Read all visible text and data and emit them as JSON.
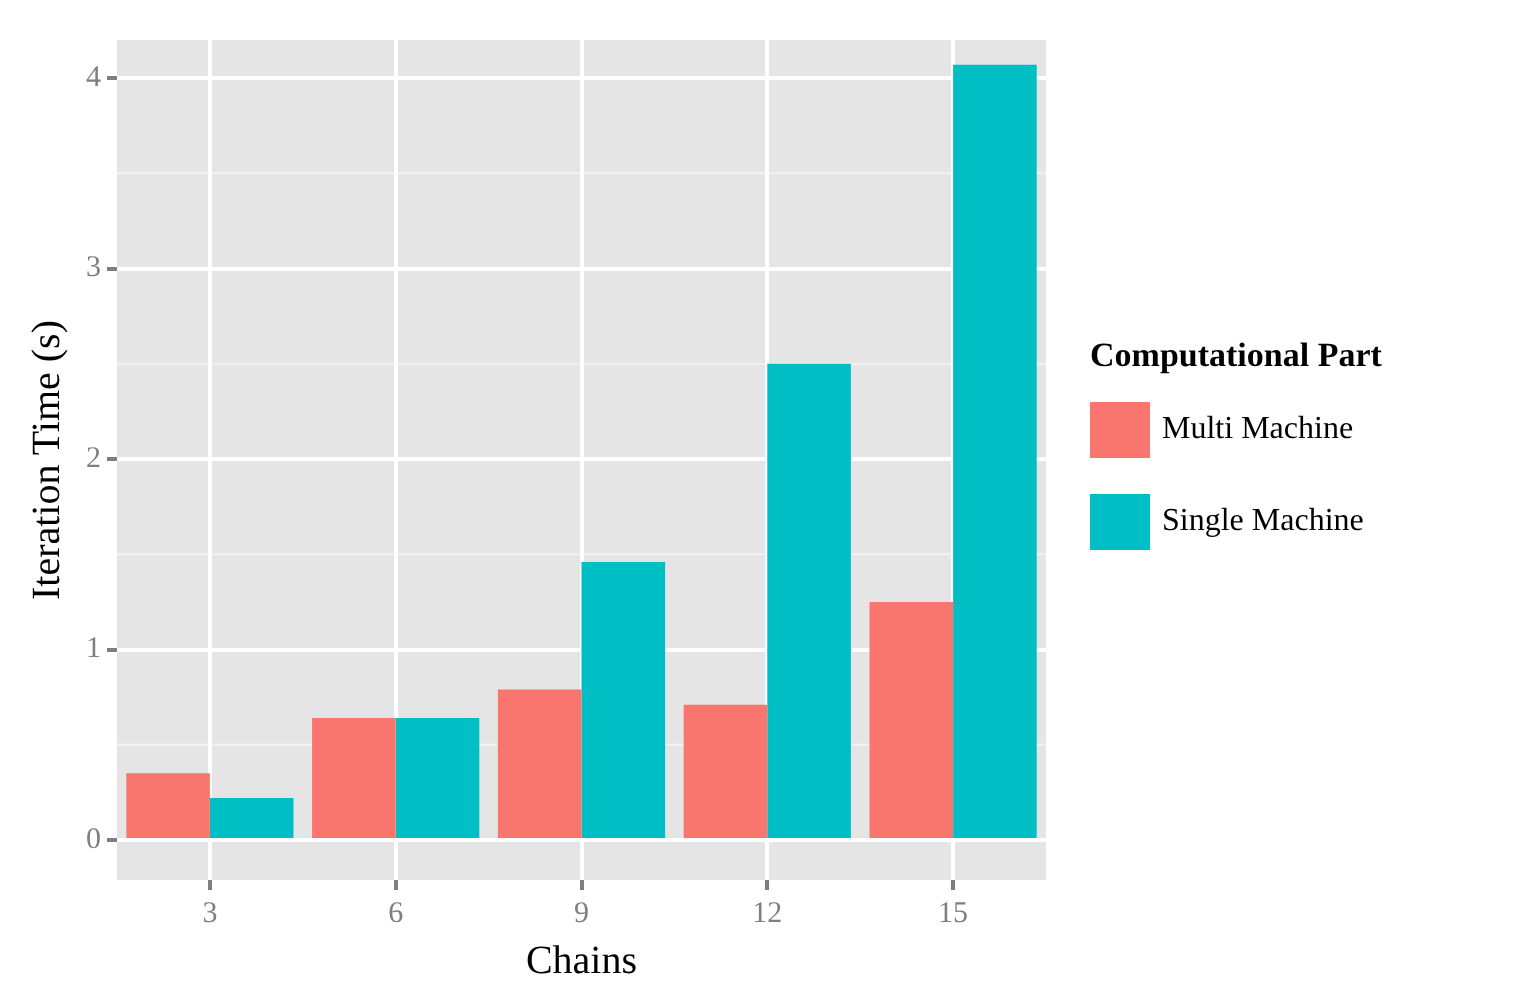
{
  "chart_data": {
    "type": "bar",
    "xlabel": "Chains",
    "ylabel": "Iteration Time (s)",
    "legend_title": "Computational Part",
    "categories": [
      "3",
      "6",
      "9",
      "12",
      "15"
    ],
    "series": [
      {
        "name": "Multi Machine",
        "color": "#f8766d",
        "values": [
          0.35,
          0.64,
          0.79,
          0.71,
          1.25
        ]
      },
      {
        "name": "Single Machine",
        "color": "#00bfc4",
        "values": [
          0.22,
          0.64,
          1.46,
          2.5,
          4.07
        ]
      }
    ],
    "ylim": [
      -0.21,
      4.2
    ],
    "yticks": [
      0,
      1,
      2,
      3,
      4
    ],
    "grid": true,
    "legend": "right"
  }
}
